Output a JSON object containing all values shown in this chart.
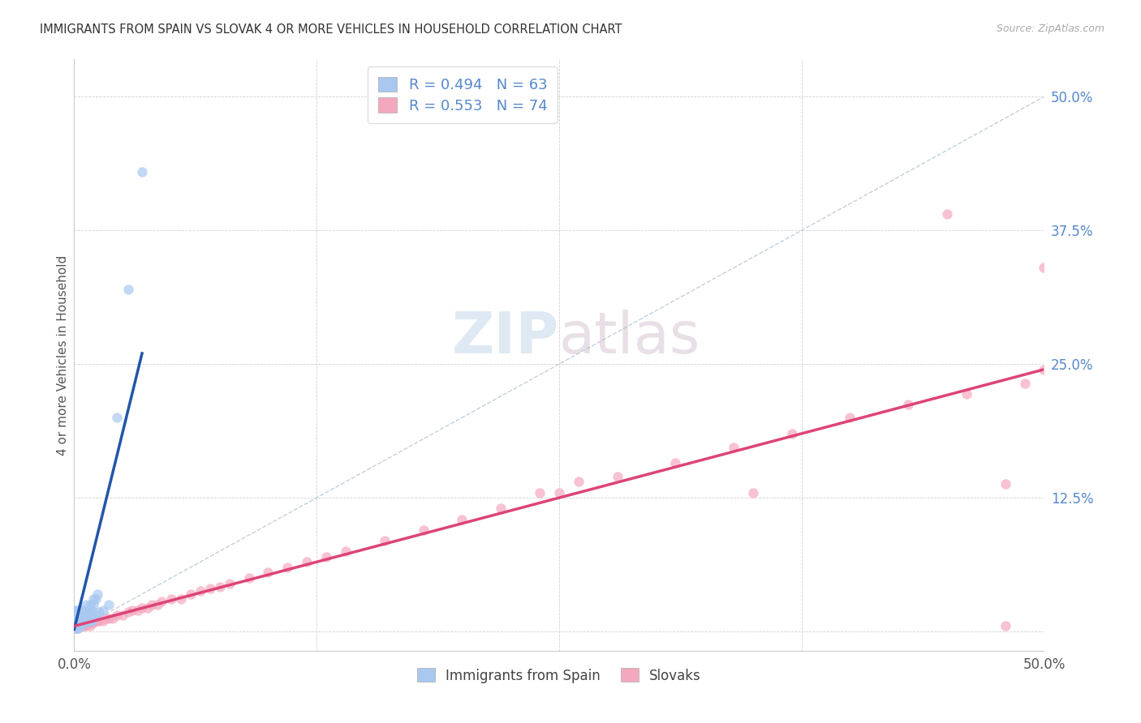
{
  "title": "IMMIGRANTS FROM SPAIN VS SLOVAK 4 OR MORE VEHICLES IN HOUSEHOLD CORRELATION CHART",
  "source": "Source: ZipAtlas.com",
  "ylabel": "4 or more Vehicles in Household",
  "blue_r": 0.494,
  "blue_n": 63,
  "pink_r": 0.553,
  "pink_n": 74,
  "legend_label_blue": "Immigrants from Spain",
  "legend_label_pink": "Slovaks",
  "blue_color": "#a8c8f0",
  "pink_color": "#f4a8be",
  "blue_line_color": "#2255aa",
  "pink_line_color": "#dd4477",
  "diag_line_color": "#aabccc",
  "background_color": "#ffffff",
  "label_color": "#5588cc",
  "xmin": 0.0,
  "xmax": 0.5,
  "ymin": -0.018,
  "ymax": 0.535,
  "blue_x": [
    0.001,
    0.001,
    0.001,
    0.001,
    0.001,
    0.001,
    0.001,
    0.001,
    0.001,
    0.002,
    0.002,
    0.002,
    0.002,
    0.002,
    0.002,
    0.002,
    0.003,
    0.003,
    0.003,
    0.003,
    0.003,
    0.004,
    0.004,
    0.004,
    0.004,
    0.005,
    0.005,
    0.005,
    0.006,
    0.006,
    0.006,
    0.007,
    0.007,
    0.008,
    0.008,
    0.009,
    0.01,
    0.01,
    0.011,
    0.012,
    0.001,
    0.001,
    0.001,
    0.001,
    0.002,
    0.002,
    0.002,
    0.003,
    0.003,
    0.004,
    0.005,
    0.006,
    0.007,
    0.008,
    0.009,
    0.01,
    0.012,
    0.013,
    0.015,
    0.018,
    0.022,
    0.028,
    0.035
  ],
  "blue_y": [
    0.005,
    0.005,
    0.005,
    0.008,
    0.01,
    0.012,
    0.015,
    0.018,
    0.02,
    0.005,
    0.005,
    0.008,
    0.01,
    0.012,
    0.015,
    0.02,
    0.005,
    0.008,
    0.01,
    0.015,
    0.02,
    0.008,
    0.01,
    0.015,
    0.02,
    0.01,
    0.015,
    0.02,
    0.012,
    0.018,
    0.025,
    0.015,
    0.02,
    0.018,
    0.025,
    0.02,
    0.025,
    0.03,
    0.03,
    0.035,
    0.003,
    0.003,
    0.003,
    0.005,
    0.003,
    0.003,
    0.005,
    0.005,
    0.008,
    0.008,
    0.008,
    0.008,
    0.01,
    0.01,
    0.01,
    0.012,
    0.015,
    0.018,
    0.02,
    0.025,
    0.2,
    0.32,
    0.43
  ],
  "pink_x": [
    0.001,
    0.001,
    0.001,
    0.001,
    0.002,
    0.002,
    0.002,
    0.002,
    0.003,
    0.003,
    0.003,
    0.004,
    0.004,
    0.005,
    0.005,
    0.006,
    0.006,
    0.007,
    0.008,
    0.008,
    0.009,
    0.01,
    0.011,
    0.012,
    0.013,
    0.015,
    0.016,
    0.018,
    0.02,
    0.022,
    0.025,
    0.028,
    0.03,
    0.033,
    0.035,
    0.038,
    0.04,
    0.043,
    0.045,
    0.05,
    0.055,
    0.06,
    0.065,
    0.07,
    0.075,
    0.08,
    0.09,
    0.1,
    0.11,
    0.12,
    0.13,
    0.14,
    0.16,
    0.18,
    0.2,
    0.22,
    0.25,
    0.28,
    0.31,
    0.34,
    0.37,
    0.4,
    0.43,
    0.46,
    0.49,
    0.5,
    0.24,
    0.26,
    0.35,
    0.48,
    0.48,
    0.5,
    0.005,
    0.45
  ],
  "pink_y": [
    0.005,
    0.005,
    0.008,
    0.01,
    0.005,
    0.005,
    0.008,
    0.01,
    0.005,
    0.008,
    0.01,
    0.005,
    0.008,
    0.005,
    0.008,
    0.005,
    0.008,
    0.008,
    0.005,
    0.008,
    0.008,
    0.008,
    0.01,
    0.01,
    0.01,
    0.01,
    0.012,
    0.012,
    0.012,
    0.015,
    0.015,
    0.018,
    0.02,
    0.02,
    0.022,
    0.022,
    0.025,
    0.025,
    0.028,
    0.03,
    0.03,
    0.035,
    0.038,
    0.04,
    0.042,
    0.045,
    0.05,
    0.055,
    0.06,
    0.065,
    0.07,
    0.075,
    0.085,
    0.095,
    0.105,
    0.115,
    0.13,
    0.145,
    0.158,
    0.172,
    0.185,
    0.2,
    0.212,
    0.222,
    0.232,
    0.245,
    0.13,
    0.14,
    0.13,
    0.138,
    0.005,
    0.34,
    0.005,
    0.39
  ],
  "blue_line_x": [
    0.0,
    0.035
  ],
  "blue_line_y": [
    0.002,
    0.26
  ],
  "pink_line_x": [
    0.0,
    0.5
  ],
  "pink_line_y": [
    0.005,
    0.245
  ]
}
